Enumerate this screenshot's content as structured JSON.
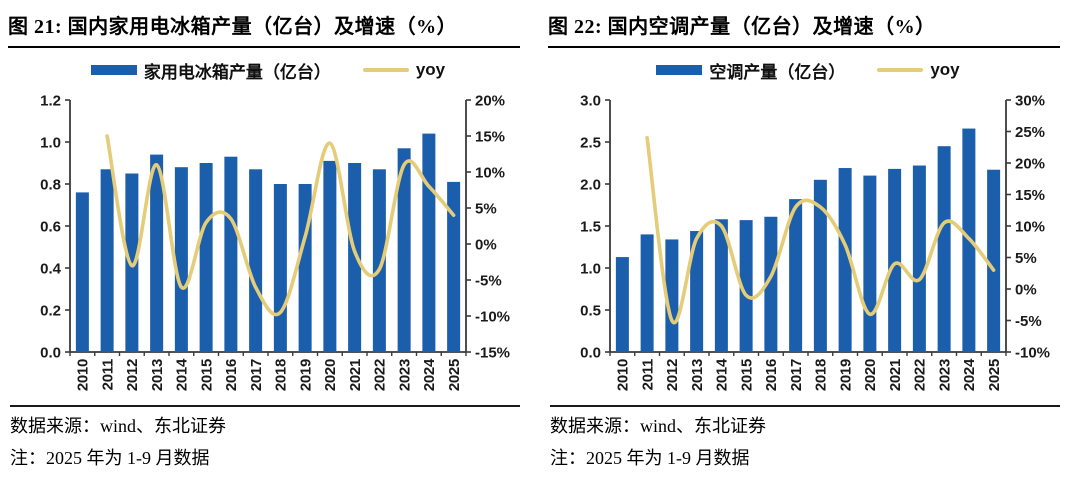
{
  "footer": {
    "source": "数据来源：wind、东北证券",
    "note": "注：2025 年为 1-9 月数据"
  },
  "colors": {
    "bar": "#1B5EAC",
    "line": "#E5CC78",
    "axis": "#3A3A3A",
    "text": "#1A1A1A"
  },
  "chart_data": [
    {
      "type": "bar",
      "subtype": "bar+line combo, dual axis",
      "title": "图 21: 国内家用电冰箱产量（亿台）及增速（%）",
      "categories": [
        "2010",
        "2011",
        "2012",
        "2013",
        "2014",
        "2015",
        "2016",
        "2017",
        "2018",
        "2019",
        "2020",
        "2021",
        "2022",
        "2023",
        "2024",
        "2025"
      ],
      "series": [
        {
          "name": "家用电冰箱产量（亿台）",
          "type": "bar",
          "axis": "left",
          "values": [
            0.76,
            0.87,
            0.85,
            0.94,
            0.88,
            0.9,
            0.93,
            0.87,
            0.8,
            0.8,
            0.91,
            0.9,
            0.87,
            0.97,
            1.04,
            0.81
          ]
        },
        {
          "name": "yoy",
          "type": "line",
          "axis": "right",
          "values": [
            null,
            15,
            -3,
            11,
            -6,
            3,
            3.5,
            -6,
            -9.5,
            1,
            14,
            -1,
            -3.5,
            11,
            8,
            4
          ]
        }
      ],
      "left_axis": {
        "min": 0,
        "max": 1.2,
        "step": 0.2,
        "decimals": 1,
        "suffix": ""
      },
      "right_axis": {
        "min": -15,
        "max": 20,
        "step": 5,
        "decimals": 0,
        "suffix": "%"
      },
      "grid": false,
      "legend_position": "top"
    },
    {
      "type": "bar",
      "subtype": "bar+line combo, dual axis",
      "title": "图 22: 国内空调产量（亿台）及增速（%）",
      "categories": [
        "2010",
        "2011",
        "2012",
        "2013",
        "2014",
        "2015",
        "2016",
        "2017",
        "2018",
        "2019",
        "2020",
        "2021",
        "2022",
        "2023",
        "2024",
        "2025"
      ],
      "series": [
        {
          "name": "空调产量（亿台）",
          "type": "bar",
          "axis": "left",
          "values": [
            1.13,
            1.4,
            1.34,
            1.44,
            1.58,
            1.57,
            1.61,
            1.82,
            2.05,
            2.19,
            2.1,
            2.18,
            2.22,
            2.45,
            2.66,
            2.17
          ]
        },
        {
          "name": "yoy",
          "type": "line",
          "axis": "right",
          "values": [
            null,
            24,
            -5,
            8,
            10,
            -1,
            2,
            13,
            13,
            7,
            -4,
            4,
            1.5,
            10.5,
            8,
            3
          ]
        }
      ],
      "left_axis": {
        "min": 0,
        "max": 3.0,
        "step": 0.5,
        "decimals": 1,
        "suffix": ""
      },
      "right_axis": {
        "min": -10,
        "max": 30,
        "step": 5,
        "decimals": 0,
        "suffix": "%"
      },
      "grid": false,
      "legend_position": "top"
    }
  ]
}
